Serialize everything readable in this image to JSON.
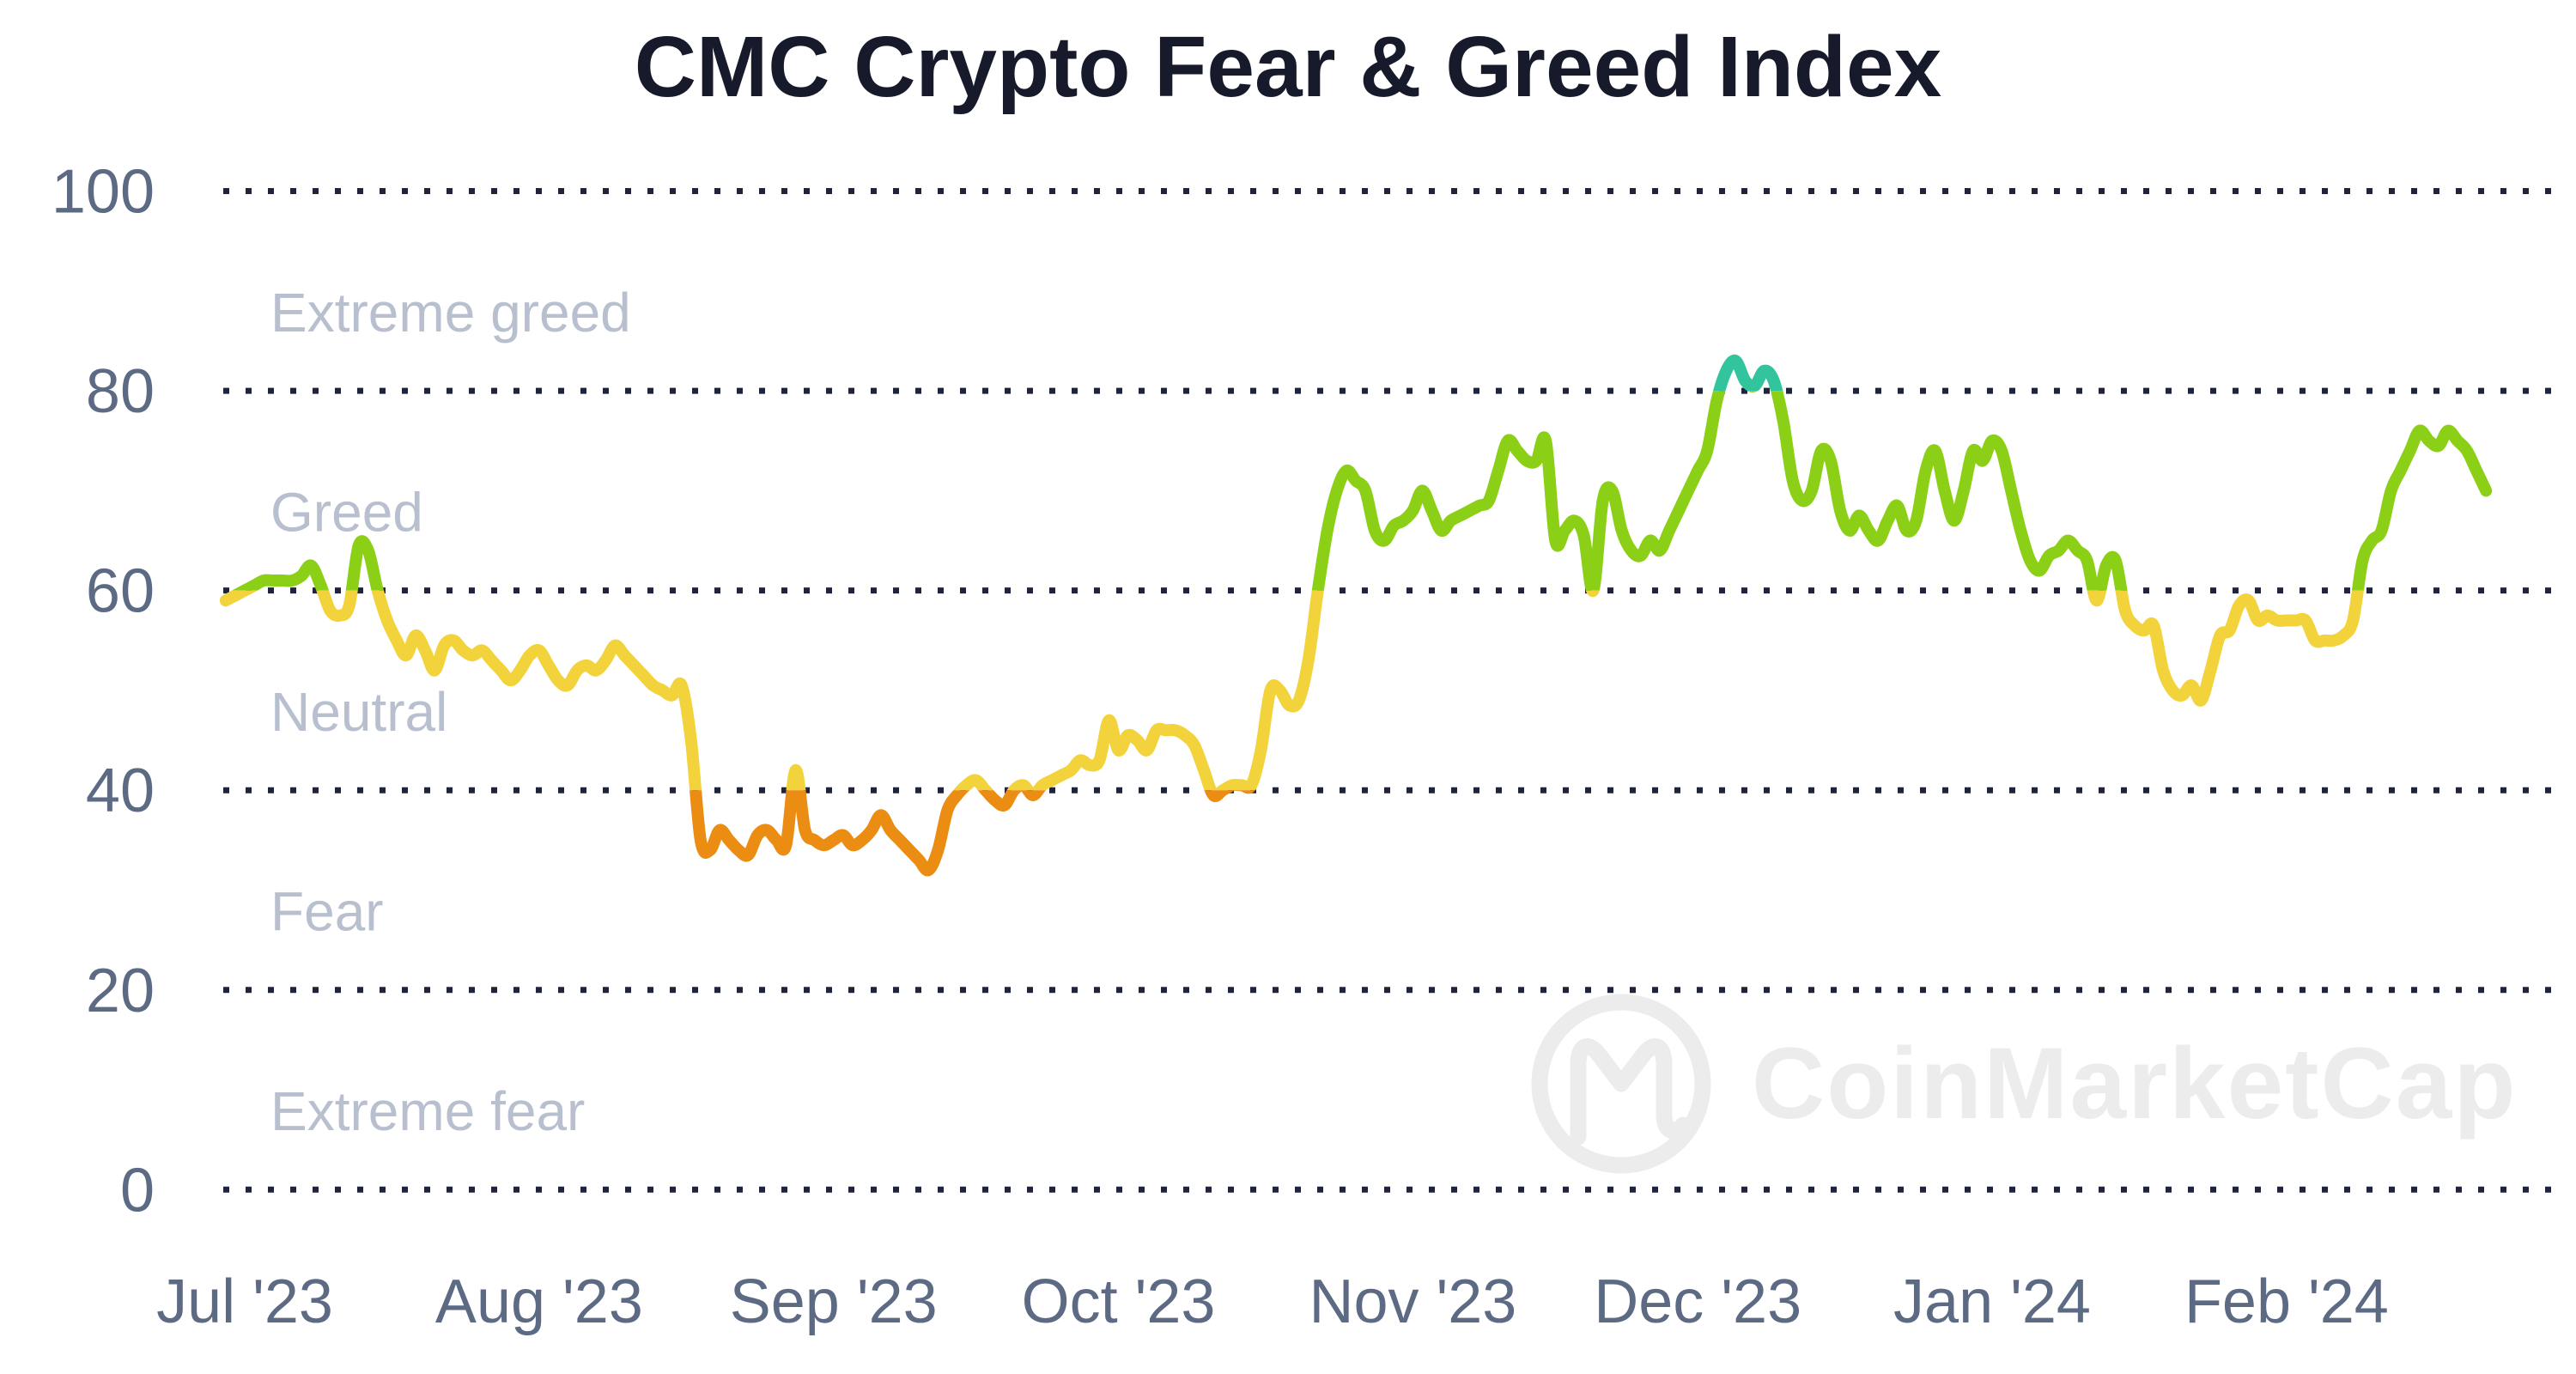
{
  "title": "CMC Crypto Fear & Greed Index",
  "watermark": {
    "text": "CoinMarketCap",
    "icon": "coinmarketcap-logo-icon",
    "color": "#ececec"
  },
  "chart_data": {
    "type": "line",
    "title": "CMC Crypto Fear & Greed Index",
    "x_axis": {
      "tick_labels": [
        "Jul '23",
        "Aug '23",
        "Sep '23",
        "Oct '23",
        "Nov '23",
        "Dec '23",
        "Jan '24",
        "Feb '24"
      ],
      "tick_day_offsets": [
        2,
        33,
        64,
        94,
        125,
        155,
        186,
        217
      ],
      "label_color": "#5d6a84"
    },
    "y_axis": {
      "ticks": [
        0,
        20,
        40,
        60,
        80,
        100
      ],
      "range": [
        0,
        100
      ],
      "label_color": "#5d6a84"
    },
    "zone_labels": [
      {
        "label": "Extreme greed",
        "range": [
          80,
          100
        ]
      },
      {
        "label": "Greed",
        "range": [
          60,
          80
        ]
      },
      {
        "label": "Neutral",
        "range": [
          40,
          60
        ]
      },
      {
        "label": "Fear",
        "range": [
          20,
          40
        ]
      },
      {
        "label": "Extreme fear",
        "range": [
          0,
          20
        ]
      }
    ],
    "zone_label_color": "#b8bfce",
    "color_bands": [
      {
        "from": 80,
        "to": 100,
        "color": "#32c49c",
        "meaning": "extreme greed"
      },
      {
        "from": 60,
        "to": 80,
        "color": "#8bd017",
        "meaning": "greed"
      },
      {
        "from": 40,
        "to": 60,
        "color": "#f3d33c",
        "meaning": "neutral"
      },
      {
        "from": 0,
        "to": 40,
        "color": "#ec8d13",
        "meaning": "fear"
      }
    ],
    "grid": {
      "style": "dotted",
      "color": "#20243a",
      "horizontal": true,
      "vertical": false
    },
    "legend": null,
    "series": [
      {
        "name": "Fear & Greed Index",
        "frequency": "daily",
        "values": [
          59,
          59.5,
          60,
          60.5,
          61,
          61,
          61,
          61,
          61.5,
          62.5,
          60.5,
          58,
          57.5,
          58.5,
          64.5,
          64,
          60,
          57,
          55,
          53.5,
          55.5,
          54,
          52,
          54.5,
          55,
          54,
          53.5,
          54,
          53,
          52,
          51,
          52,
          53.5,
          54,
          52.5,
          51,
          50.5,
          52,
          52.5,
          52,
          53,
          54.5,
          53.5,
          52.5,
          51.5,
          50.5,
          50,
          49.5,
          50.5,
          45,
          35,
          34,
          36,
          35,
          34,
          33.5,
          35.5,
          36,
          35,
          34.5,
          42,
          36,
          35,
          34.5,
          35,
          35.5,
          34.5,
          35,
          36,
          37.5,
          36,
          35,
          34,
          33,
          32,
          34,
          38,
          39.5,
          40.5,
          41,
          40,
          39,
          38.5,
          40,
          40.5,
          39.5,
          40.5,
          41,
          41.5,
          42,
          43,
          42.5,
          43,
          47,
          44,
          45.5,
          45,
          44,
          46,
          46,
          46,
          45.5,
          44.5,
          42,
          39.5,
          40,
          40.5,
          40.5,
          40.5,
          44,
          50,
          50,
          48.5,
          49,
          53,
          60,
          66,
          70,
          72,
          71,
          70,
          66,
          65,
          66.5,
          67,
          68,
          70,
          68,
          66,
          67,
          67.5,
          68,
          68.5,
          69,
          72,
          75,
          74,
          73,
          73,
          75,
          65,
          66,
          67,
          65.5,
          60,
          69,
          70,
          66,
          64,
          63.5,
          65,
          64,
          66,
          68,
          70,
          72,
          74,
          79,
          82,
          83,
          81,
          80.5,
          82,
          81,
          77,
          71,
          69,
          70,
          74,
          73,
          68,
          66,
          67.5,
          66,
          65,
          67,
          68.5,
          66,
          67,
          72,
          74,
          70,
          67,
          70,
          74,
          73,
          75,
          74,
          70,
          66,
          63,
          62,
          63.5,
          64,
          65,
          64,
          63,
          59,
          62.5,
          63,
          58,
          56.5,
          56,
          56.5,
          52,
          50,
          49.5,
          50.5,
          49,
          52,
          55.5,
          56,
          58.5,
          59,
          57,
          57.5,
          57,
          57,
          57,
          57,
          55,
          55,
          55,
          55.5,
          57,
          63,
          65,
          66,
          70,
          72,
          74,
          76,
          75,
          74.5,
          76,
          75,
          74,
          72,
          70
        ]
      }
    ]
  }
}
